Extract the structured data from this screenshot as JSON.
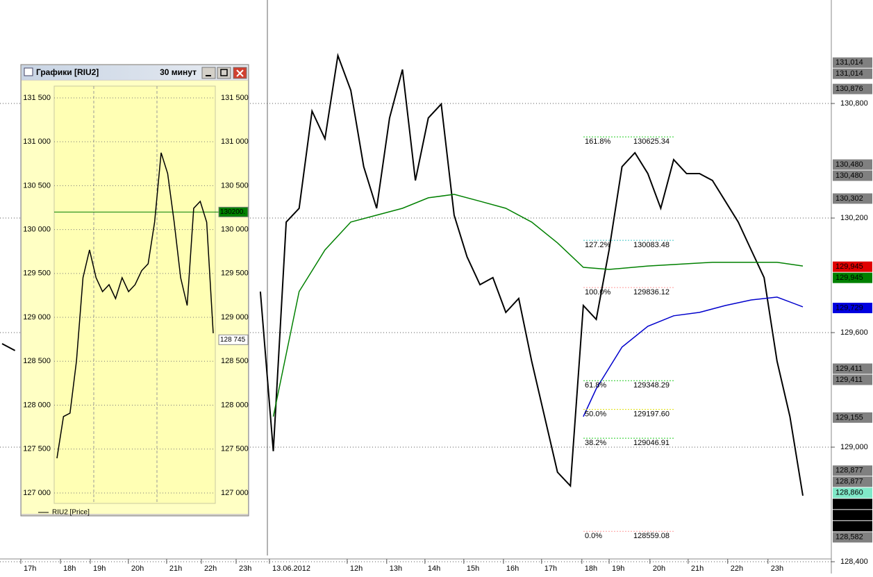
{
  "window": {
    "title": "Графики [RIU2]",
    "timeframe": "30 минут",
    "legend": "RIU2 [Price]"
  },
  "chart_data": [
    {
      "type": "line",
      "x": [
        0,
        1,
        2,
        3,
        4,
        5,
        6,
        7,
        8,
        9,
        10,
        11,
        12,
        13,
        14,
        15,
        16,
        17,
        18,
        19,
        20,
        21,
        22,
        23,
        24,
        25,
        26,
        27,
        28,
        29,
        30,
        31,
        32,
        33,
        34,
        35,
        36,
        37,
        38,
        39,
        40,
        41,
        42,
        43,
        44,
        45,
        46,
        47,
        48,
        49,
        50,
        51,
        52,
        53,
        54,
        55,
        56,
        57,
        58,
        59,
        60,
        61,
        62
      ],
      "xlim": [
        0,
        62
      ],
      "xticks": [
        {
          "value": 1.45,
          "label": "17h"
        },
        {
          "value": 4.52,
          "label": "18h"
        },
        {
          "value": 6.83,
          "label": "19h"
        },
        {
          "value": 9.78,
          "label": "20h"
        },
        {
          "value": 12.74,
          "label": "21h"
        },
        {
          "value": 15.43,
          "label": "22h"
        },
        {
          "value": 18.12,
          "label": "23h"
        },
        {
          "value": 20.7,
          "label": "13.06.2012"
        },
        {
          "value": 26.72,
          "label": "12h"
        },
        {
          "value": 29.78,
          "label": "13h"
        },
        {
          "value": 32.74,
          "label": "14h"
        },
        {
          "value": 35.75,
          "label": "15h"
        },
        {
          "value": 38.82,
          "label": "16h"
        },
        {
          "value": 41.77,
          "label": "17h"
        },
        {
          "value": 44.89,
          "label": "18h"
        },
        {
          "value": 47.0,
          "label": "19h"
        },
        {
          "value": 50.16,
          "label": "20h"
        },
        {
          "value": 53.12,
          "label": "21h"
        },
        {
          "value": 56.18,
          "label": "22h"
        },
        {
          "value": 59.3,
          "label": "23h"
        }
      ],
      "series": [
        {
          "color": "#000000",
          "values": [
            129542,
            129506,
            null,
            null,
            null,
            null,
            null,
            null,
            null,
            null,
            null,
            null,
            null,
            null,
            null,
            null,
            null,
            null,
            null,
            null,
            129815,
            128979,
            130179,
            130251,
            130760,
            130615,
            131051,
            130869,
            130469,
            130251,
            130724,
            130978,
            130397,
            130724,
            130797,
            130215,
            129997,
            129851,
            129888,
            129706,
            129779,
            129451,
            129160,
            128869,
            128797,
            129742,
            129669,
            130033,
            130469,
            130542,
            130433,
            130251,
            130506,
            130433,
            130433,
            130397,
            130288,
            130179,
            130033,
            129888,
            129451,
            129160,
            128746
          ]
        },
        {
          "color": "#008000",
          "x": [
            21,
            23,
            25,
            27,
            29,
            31,
            33,
            35,
            37,
            39,
            41,
            43,
            45,
            47,
            50,
            55,
            60,
            62
          ],
          "values": [
            129160,
            129815,
            130033,
            130179,
            130215,
            130251,
            130306,
            130324,
            130288,
            130251,
            130179,
            130070,
            129942,
            129931,
            129949,
            129968,
            129968,
            129949
          ]
        },
        {
          "color": "#0000cc",
          "x": [
            45,
            46,
            48,
            50,
            52,
            54,
            56,
            58,
            60,
            62
          ],
          "values": [
            129160,
            129306,
            129524,
            129633,
            129688,
            129706,
            129742,
            129771,
            129786,
            129735
          ]
        }
      ],
      "ylim": [
        128400,
        131342
      ],
      "yticks": [
        {
          "value": 128400,
          "label": "128,400"
        },
        {
          "value": 129000,
          "label": "129,000"
        },
        {
          "value": 129600,
          "label": "129,600"
        },
        {
          "value": 130200,
          "label": "130,200"
        },
        {
          "value": 130800,
          "label": "130,800"
        }
      ],
      "grid": true,
      "price_tags": [
        {
          "value": 131014,
          "label": "131,014",
          "color": "#808080"
        },
        {
          "value": 131014,
          "label": "131,014",
          "color": "#808080"
        },
        {
          "value": 130876,
          "label": "130,876",
          "color": "#808080"
        },
        {
          "value": 130480,
          "label": "130,480",
          "color": "#808080"
        },
        {
          "value": 130480,
          "label": "130,480",
          "color": "#808080"
        },
        {
          "value": 130302,
          "label": "130,302",
          "color": "#808080"
        },
        {
          "value": 129945,
          "label": "129,945",
          "color": "#e00000"
        },
        {
          "value": 129945,
          "label": "129,945",
          "color": "#008000"
        },
        {
          "value": 129729,
          "label": "129,729",
          "color": "#0000e0"
        },
        {
          "value": 129411,
          "label": "129,411",
          "color": "#808080"
        },
        {
          "value": 129411,
          "label": "129,411",
          "color": "#808080"
        },
        {
          "value": 129155,
          "label": "129,155",
          "color": "#808080"
        },
        {
          "value": 128877,
          "label": "128,877",
          "color": "#808080"
        },
        {
          "value": 128877,
          "label": "128,877",
          "color": "#808080"
        },
        {
          "value": 128860,
          "label": "128,860",
          "color": "#80e8c8"
        },
        {
          "value": 128745,
          "label": "128,745",
          "color": "#000000"
        },
        {
          "value": 128745,
          "label": "128,745",
          "color": "#000000"
        },
        {
          "value": 128745,
          "label": "128,745",
          "color": "#000000"
        },
        {
          "value": 128582,
          "label": "128,582",
          "color": "#808080"
        }
      ],
      "fibonacci": [
        {
          "label": "161.8%",
          "price": {
            "value": 130625.34,
            "label": "130625.34"
          },
          "color": "#22cc22"
        },
        {
          "label": "127.2%",
          "price": {
            "value": 130083.48,
            "label": "130083.48"
          },
          "color": "#40c8c8"
        },
        {
          "label": "100.0%",
          "price": {
            "value": 129836.12,
            "label": "129836.12"
          },
          "color": "#ff9a9a"
        },
        {
          "label": "61.8%",
          "price": {
            "value": 129348.29,
            "label": "129348.29"
          },
          "color": "#22cc22"
        },
        {
          "label": "50.0%",
          "price": {
            "value": 129197.6,
            "label": "129197.60"
          },
          "color": "#e0e000"
        },
        {
          "label": "38.2%",
          "price": {
            "value": 129046.91,
            "label": "129046.91"
          },
          "color": "#22cc22"
        },
        {
          "label": "0.0%",
          "price": {
            "value": 128559.08,
            "label": "128559.08"
          },
          "color": "#ff9a9a"
        }
      ]
    },
    {
      "type": "line",
      "x": [
        0,
        1,
        2,
        3,
        4,
        5,
        6,
        7,
        8,
        9,
        10,
        11,
        12,
        13,
        14,
        15,
        16,
        17,
        18,
        19,
        20,
        21,
        22,
        23,
        24
      ],
      "xlim": [
        0,
        24
      ],
      "series": [
        {
          "color": "#000000",
          "values": [
            127395,
            127870,
            127909,
            128502,
            129452,
            129768,
            129452,
            129293,
            129372,
            129214,
            129452,
            129293,
            129372,
            129531,
            129610,
            130084,
            130875,
            130638,
            130084,
            129452,
            129135,
            130242,
            130321,
            130084,
            128819
          ]
        }
      ],
      "ylim": [
        126881,
        131634
      ],
      "yticks": [
        {
          "value": 131500,
          "label": "131 500"
        },
        {
          "value": 131000,
          "label": "131 000"
        },
        {
          "value": 130500,
          "label": "130 500"
        },
        {
          "value": 130000,
          "label": "130 000"
        },
        {
          "value": 129500,
          "label": "129 500"
        },
        {
          "value": 129000,
          "label": "129 000"
        },
        {
          "value": 128500,
          "label": "128 500"
        },
        {
          "value": 128000,
          "label": "128 000"
        },
        {
          "value": 127500,
          "label": "127 500"
        },
        {
          "value": 127000,
          "label": "127 000"
        }
      ],
      "grid": true,
      "price_tags": [
        {
          "value": 130200,
          "label": "130200.",
          "color": "#008000"
        },
        {
          "value": 128745,
          "label": "128 745",
          "color": "#ffffff"
        }
      ]
    }
  ]
}
